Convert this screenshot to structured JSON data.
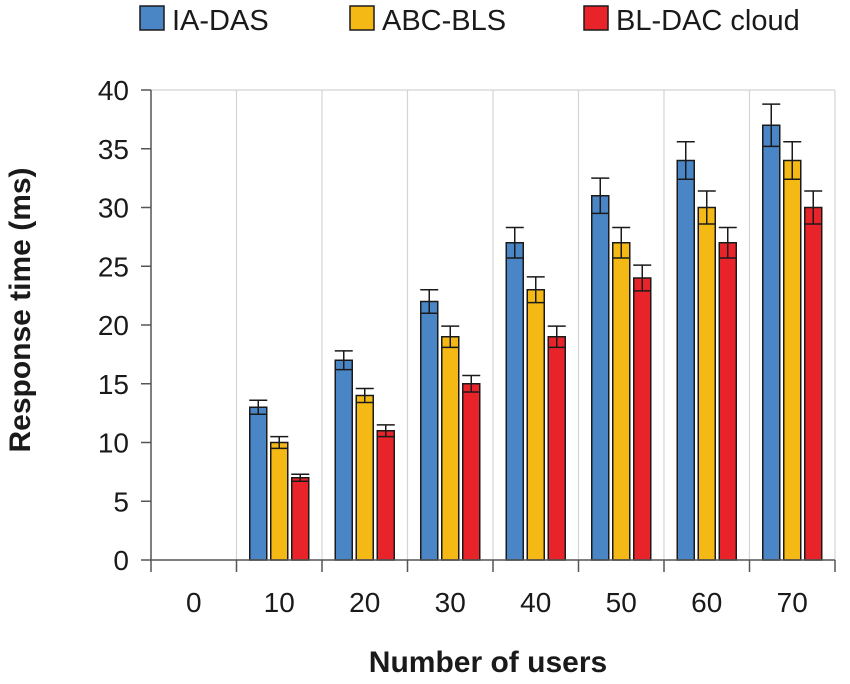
{
  "chart_data": {
    "type": "bar",
    "title": "",
    "xlabel": "Number of users",
    "ylabel": "Response time (ms)",
    "categories": [
      "0",
      "10",
      "20",
      "30",
      "40",
      "50",
      "60",
      "70"
    ],
    "ylim": [
      0,
      40
    ],
    "yticks": [
      "0",
      "5",
      "10",
      "15",
      "20",
      "25",
      "30",
      "35",
      "40"
    ],
    "grid": true,
    "legend_position": "top",
    "series": [
      {
        "name": "IA-DAS",
        "color": "#4a86c5",
        "values": [
          null,
          13,
          17,
          22,
          27,
          31,
          34,
          37
        ],
        "errors": [
          null,
          0.6,
          0.8,
          1.0,
          1.3,
          1.5,
          1.6,
          1.8
        ]
      },
      {
        "name": "ABC-BLS",
        "color": "#f5b916",
        "values": [
          null,
          10,
          14,
          19,
          23,
          27,
          30,
          34
        ],
        "errors": [
          null,
          0.5,
          0.6,
          0.9,
          1.1,
          1.3,
          1.4,
          1.6
        ]
      },
      {
        "name": "BL-DAC cloud",
        "color": "#e8242a",
        "values": [
          null,
          7,
          11,
          15,
          19,
          24,
          27,
          30
        ],
        "errors": [
          null,
          0.3,
          0.5,
          0.7,
          0.9,
          1.1,
          1.3,
          1.4
        ]
      }
    ]
  }
}
